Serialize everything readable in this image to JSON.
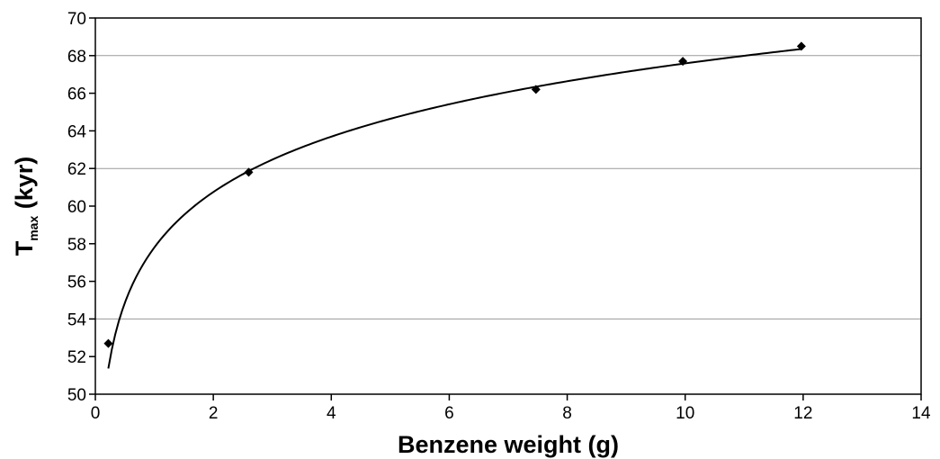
{
  "chart_data": {
    "type": "scatter",
    "xlabel": "Benzene weight (g)",
    "ylabel": {
      "main": "T",
      "subscript": "max",
      "suffix": " (kyr)"
    },
    "xlim": [
      0,
      14
    ],
    "ylim": [
      50,
      70
    ],
    "xticks": [
      0,
      2,
      4,
      6,
      8,
      10,
      12,
      14
    ],
    "yticks": [
      50,
      52,
      54,
      56,
      58,
      60,
      62,
      64,
      66,
      68,
      70
    ],
    "gridlines_y": [
      54,
      62,
      68
    ],
    "series": [
      {
        "marker": "diamond",
        "x": [
          0.22,
          2.6,
          7.47,
          9.96,
          11.97
        ],
        "y": [
          52.7,
          61.8,
          66.2,
          67.7,
          68.5
        ]
      }
    ],
    "trendline": {
      "type": "logarithmic",
      "a": 57.8,
      "b": 4.25,
      "from": 0.22,
      "to": 11.97
    },
    "grid": true,
    "legend": "none",
    "colors": {
      "marker": "#000000",
      "line": "#000000",
      "grid": "#9a9a9a"
    }
  }
}
